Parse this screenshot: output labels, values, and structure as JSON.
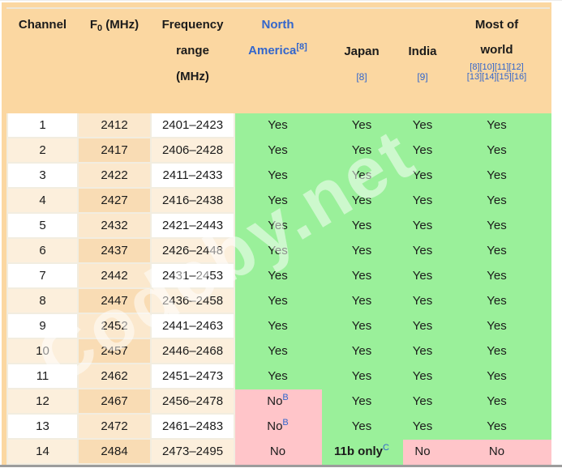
{
  "watermark": "Codeby.net",
  "colors": {
    "frame_orange": "#FBD7A1",
    "grid_cream": "#F2EDE0",
    "row_peach": "#FCEFDC",
    "f0_column_light": "#FBE8CD",
    "f0_column_dark": "#F9DCB4",
    "yes_green": "#9AF09A",
    "no_pink": "#FFC5C9",
    "link_blue": "#3366CC",
    "text_black": "#1B1B1B"
  },
  "table": {
    "header": {
      "channel": "Channel",
      "f0": {
        "pre": "F",
        "sub": "0",
        "post": " (MHz)"
      },
      "freq_lines": [
        "Frequency",
        "range",
        "(MHz)"
      ],
      "north_america": {
        "line1": "North",
        "line2": "America",
        "ref": "[8]"
      },
      "japan": {
        "label": "Japan",
        "ref": "[8]"
      },
      "india": {
        "label": "India",
        "ref": "[9]"
      },
      "most_of_world": {
        "line1": "Most of",
        "line2": "world",
        "refs1": "[8][10][11][12]",
        "refs2": "[13][14][15][16]"
      }
    },
    "rows": [
      {
        "channel": "1",
        "f0": "2412",
        "range": "2401–2423",
        "cells": [
          {
            "t": "Yes",
            "bg": "green"
          },
          {
            "t": "Yes",
            "bg": "green"
          },
          {
            "t": "Yes",
            "bg": "green"
          },
          {
            "t": "Yes",
            "bg": "green"
          }
        ]
      },
      {
        "channel": "2",
        "f0": "2417",
        "range": "2406–2428",
        "cells": [
          {
            "t": "Yes",
            "bg": "green"
          },
          {
            "t": "Yes",
            "bg": "green"
          },
          {
            "t": "Yes",
            "bg": "green"
          },
          {
            "t": "Yes",
            "bg": "green"
          }
        ]
      },
      {
        "channel": "3",
        "f0": "2422",
        "range": "2411–2433",
        "cells": [
          {
            "t": "Yes",
            "bg": "green"
          },
          {
            "t": "Yes",
            "bg": "green"
          },
          {
            "t": "Yes",
            "bg": "green"
          },
          {
            "t": "Yes",
            "bg": "green"
          }
        ]
      },
      {
        "channel": "4",
        "f0": "2427",
        "range": "2416–2438",
        "cells": [
          {
            "t": "Yes",
            "bg": "green"
          },
          {
            "t": "Yes",
            "bg": "green"
          },
          {
            "t": "Yes",
            "bg": "green"
          },
          {
            "t": "Yes",
            "bg": "green"
          }
        ]
      },
      {
        "channel": "5",
        "f0": "2432",
        "range": "2421–2443",
        "cells": [
          {
            "t": "Yes",
            "bg": "green"
          },
          {
            "t": "Yes",
            "bg": "green"
          },
          {
            "t": "Yes",
            "bg": "green"
          },
          {
            "t": "Yes",
            "bg": "green"
          }
        ]
      },
      {
        "channel": "6",
        "f0": "2437",
        "range": "2426–2448",
        "cells": [
          {
            "t": "Yes",
            "bg": "green"
          },
          {
            "t": "Yes",
            "bg": "green"
          },
          {
            "t": "Yes",
            "bg": "green"
          },
          {
            "t": "Yes",
            "bg": "green"
          }
        ]
      },
      {
        "channel": "7",
        "f0": "2442",
        "range": "2431–2453",
        "cells": [
          {
            "t": "Yes",
            "bg": "green"
          },
          {
            "t": "Yes",
            "bg": "green"
          },
          {
            "t": "Yes",
            "bg": "green"
          },
          {
            "t": "Yes",
            "bg": "green"
          }
        ]
      },
      {
        "channel": "8",
        "f0": "2447",
        "range": "2436–2458",
        "cells": [
          {
            "t": "Yes",
            "bg": "green"
          },
          {
            "t": "Yes",
            "bg": "green"
          },
          {
            "t": "Yes",
            "bg": "green"
          },
          {
            "t": "Yes",
            "bg": "green"
          }
        ]
      },
      {
        "channel": "9",
        "f0": "2452",
        "range": "2441–2463",
        "cells": [
          {
            "t": "Yes",
            "bg": "green"
          },
          {
            "t": "Yes",
            "bg": "green"
          },
          {
            "t": "Yes",
            "bg": "green"
          },
          {
            "t": "Yes",
            "bg": "green"
          }
        ]
      },
      {
        "channel": "10",
        "f0": "2457",
        "range": "2446–2468",
        "cells": [
          {
            "t": "Yes",
            "bg": "green"
          },
          {
            "t": "Yes",
            "bg": "green"
          },
          {
            "t": "Yes",
            "bg": "green"
          },
          {
            "t": "Yes",
            "bg": "green"
          }
        ]
      },
      {
        "channel": "11",
        "f0": "2462",
        "range": "2451–2473",
        "cells": [
          {
            "t": "Yes",
            "bg": "green"
          },
          {
            "t": "Yes",
            "bg": "green"
          },
          {
            "t": "Yes",
            "bg": "green"
          },
          {
            "t": "Yes",
            "bg": "green"
          }
        ]
      },
      {
        "channel": "12",
        "f0": "2467",
        "range": "2456–2478",
        "cells": [
          {
            "t": "No",
            "sup": "B",
            "bg": "pink"
          },
          {
            "t": "Yes",
            "bg": "green"
          },
          {
            "t": "Yes",
            "bg": "green"
          },
          {
            "t": "Yes",
            "bg": "green"
          }
        ]
      },
      {
        "channel": "13",
        "f0": "2472",
        "range": "2461–2483",
        "cells": [
          {
            "t": "No",
            "sup": "B",
            "bg": "pink"
          },
          {
            "t": "Yes",
            "bg": "green"
          },
          {
            "t": "Yes",
            "bg": "green"
          },
          {
            "t": "Yes",
            "bg": "green"
          }
        ]
      },
      {
        "channel": "14",
        "f0": "2484",
        "range": "2473–2495",
        "cells": [
          {
            "t": "No",
            "bg": "pink"
          },
          {
            "t": "11b only",
            "sup": "C",
            "bg": "green",
            "bold": true
          },
          {
            "t": "No",
            "bg": "pink"
          },
          {
            "t": "No",
            "bg": "pink"
          }
        ]
      }
    ]
  }
}
